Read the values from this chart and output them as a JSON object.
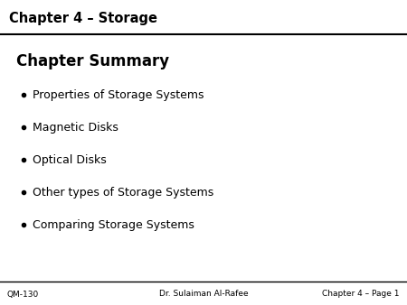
{
  "bg_color": "#ffffff",
  "header_text": "Chapter 4 – Storage",
  "header_color": "#000000",
  "header_line_color": "#000000",
  "slide_title": "Chapter Summary",
  "slide_title_color": "#000000",
  "bullet_items": [
    "Properties of Storage Systems",
    "Magnetic Disks",
    "Optical Disks",
    "Other types of Storage Systems",
    "Comparing Storage Systems"
  ],
  "bullet_color": "#000000",
  "bullet_text_color": "#000000",
  "footer_left": "QM-130",
  "footer_center": "Dr. Sulaiman Al-Rafee",
  "footer_right": "Chapter 4 – Page 1",
  "footer_color": "#000000",
  "footer_line_color": "#000000",
  "header_fontsize": 10.5,
  "title_fontsize": 12,
  "bullet_fontsize": 9,
  "footer_fontsize": 6.5
}
